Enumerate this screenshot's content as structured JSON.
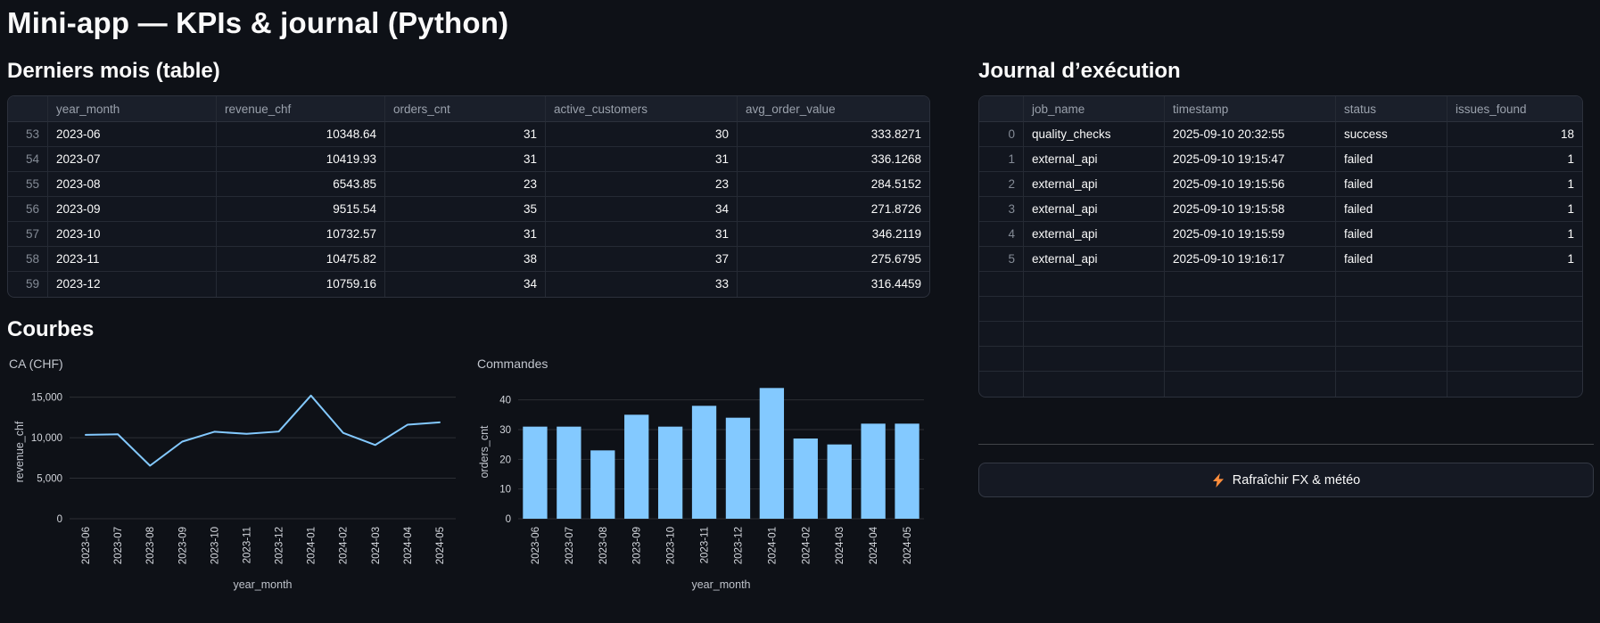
{
  "page": {
    "title": "Mini-app — KPIs & journal (Python)"
  },
  "left": {
    "table_section_title": "Derniers mois (table)",
    "months_table": {
      "columns": [
        {
          "label": "",
          "align": "right",
          "index": true
        },
        {
          "label": "year_month",
          "align": "left"
        },
        {
          "label": "revenue_chf",
          "align": "right"
        },
        {
          "label": "orders_cnt",
          "align": "right"
        },
        {
          "label": "active_customers",
          "align": "right"
        },
        {
          "label": "avg_order_value",
          "align": "right"
        }
      ],
      "rows": [
        [
          "53",
          "2023-06",
          "10348.64",
          "31",
          "30",
          "333.8271"
        ],
        [
          "54",
          "2023-07",
          "10419.93",
          "31",
          "31",
          "336.1268"
        ],
        [
          "55",
          "2023-08",
          "6543.85",
          "23",
          "23",
          "284.5152"
        ],
        [
          "56",
          "2023-09",
          "9515.54",
          "35",
          "34",
          "271.8726"
        ],
        [
          "57",
          "2023-10",
          "10732.57",
          "31",
          "31",
          "346.2119"
        ],
        [
          "58",
          "2023-11",
          "10475.82",
          "38",
          "37",
          "275.6795"
        ],
        [
          "59",
          "2023-12",
          "10759.16",
          "34",
          "33",
          "316.4459"
        ]
      ],
      "empty_rows": 0
    },
    "charts_section_title": "Courbes"
  },
  "right": {
    "section_title": "Journal d’exécution",
    "journal_table": {
      "columns": [
        {
          "label": "",
          "align": "right",
          "index": true
        },
        {
          "label": "job_name",
          "align": "left"
        },
        {
          "label": "timestamp",
          "align": "left"
        },
        {
          "label": "status",
          "align": "left"
        },
        {
          "label": "issues_found",
          "align": "right"
        }
      ],
      "rows": [
        [
          "0",
          "quality_checks",
          "2025-09-10 20:32:55",
          "success",
          "18"
        ],
        [
          "1",
          "external_api",
          "2025-09-10 19:15:47",
          "failed",
          "1"
        ],
        [
          "2",
          "external_api",
          "2025-09-10 19:15:56",
          "failed",
          "1"
        ],
        [
          "3",
          "external_api",
          "2025-09-10 19:15:58",
          "failed",
          "1"
        ],
        [
          "4",
          "external_api",
          "2025-09-10 19:15:59",
          "failed",
          "1"
        ],
        [
          "5",
          "external_api",
          "2025-09-10 19:16:17",
          "failed",
          "1"
        ]
      ],
      "empty_rows": 5
    },
    "refresh_button": {
      "label": "Rafraîchir FX & météo",
      "icon": "lightning-bolt"
    }
  },
  "chart_data": [
    {
      "type": "line",
      "title": "CA (CHF)",
      "x": [
        "2023-06",
        "2023-07",
        "2023-08",
        "2023-09",
        "2023-10",
        "2023-11",
        "2023-12",
        "2024-01",
        "2024-02",
        "2024-03",
        "2024-04",
        "2024-05"
      ],
      "values": [
        10348.64,
        10419.93,
        6543.85,
        9515.54,
        10732.57,
        10475.82,
        10759.16,
        15200,
        10600,
        9100,
        11600,
        11900
      ],
      "xlabel": "year_month",
      "ylabel": "revenue_chf",
      "ylim": [
        0,
        16500
      ],
      "yticks": [
        0,
        5000,
        10000,
        15000
      ],
      "ytick_labels": [
        "0",
        "5,000",
        "10,000",
        "15,000"
      ],
      "color": "#83c9ff",
      "grid": true,
      "legend": "none"
    },
    {
      "type": "bar",
      "title": "Commandes",
      "x": [
        "2023-06",
        "2023-07",
        "2023-08",
        "2023-09",
        "2023-10",
        "2023-11",
        "2023-12",
        "2024-01",
        "2024-02",
        "2024-03",
        "2024-04",
        "2024-05"
      ],
      "values": [
        31,
        31,
        23,
        35,
        31,
        38,
        34,
        44,
        27,
        25,
        32,
        32
      ],
      "xlabel": "year_month",
      "ylabel": "orders_cnt",
      "ylim": [
        0,
        45
      ],
      "yticks": [
        0,
        10,
        20,
        30,
        40
      ],
      "ytick_labels": [
        "0",
        "10",
        "20",
        "30",
        "40"
      ],
      "color": "#83c9ff",
      "grid": true,
      "legend": "none"
    }
  ],
  "colors": {
    "background": "#0e1117",
    "text": "#fafafa",
    "chart_blue": "#83c9ff",
    "bolt_orange": "#ff8e3c",
    "table_header_bg": "#1a1f2a",
    "table_cell_bg": "#12161f"
  }
}
